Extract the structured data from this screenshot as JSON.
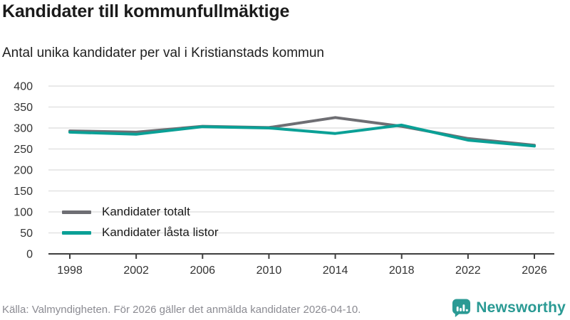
{
  "title": "Kandidater till kommunfullmäktige",
  "subtitle": "Antal unika kandidater per val i Kristianstads kommun",
  "footer": {
    "source": "Källa: Valmyndigheten. För 2026 gäller det anmälda kandidater 2026-04-10.",
    "brand": "Newsworthy"
  },
  "colors": {
    "total_line": "#6e6e73",
    "locked_line": "#0aa096",
    "grid": "#e2e2e2",
    "axis": "#3f3f3f",
    "tick_text": "#333333",
    "legend_text": "#1b1b1b",
    "footer_text": "#8b8b92",
    "brand_teal": "#2a9a94"
  },
  "chart_data": {
    "type": "line",
    "title": "Kandidater till kommunfullmäktige",
    "subtitle": "Antal unika kandidater per val i Kristianstads kommun",
    "x": [
      1998,
      2002,
      2006,
      2010,
      2014,
      2018,
      2022,
      2026
    ],
    "series": [
      {
        "name": "Kandidater totalt",
        "color": "#6e6e73",
        "values": [
          293,
          290,
          304,
          301,
          325,
          304,
          275,
          259
        ]
      },
      {
        "name": "Kandidater låsta listor",
        "color": "#0aa096",
        "values": [
          290,
          285,
          303,
          300,
          287,
          307,
          271,
          257
        ]
      }
    ],
    "xlabel": "",
    "ylabel": "",
    "ylim": [
      0,
      400
    ],
    "yticks": [
      0,
      50,
      100,
      150,
      200,
      250,
      300,
      350,
      400
    ],
    "xticks": [
      1998,
      2002,
      2006,
      2010,
      2014,
      2018,
      2022,
      2026
    ],
    "grid": "horizontal",
    "legend_position": "inside-bottom-left"
  }
}
